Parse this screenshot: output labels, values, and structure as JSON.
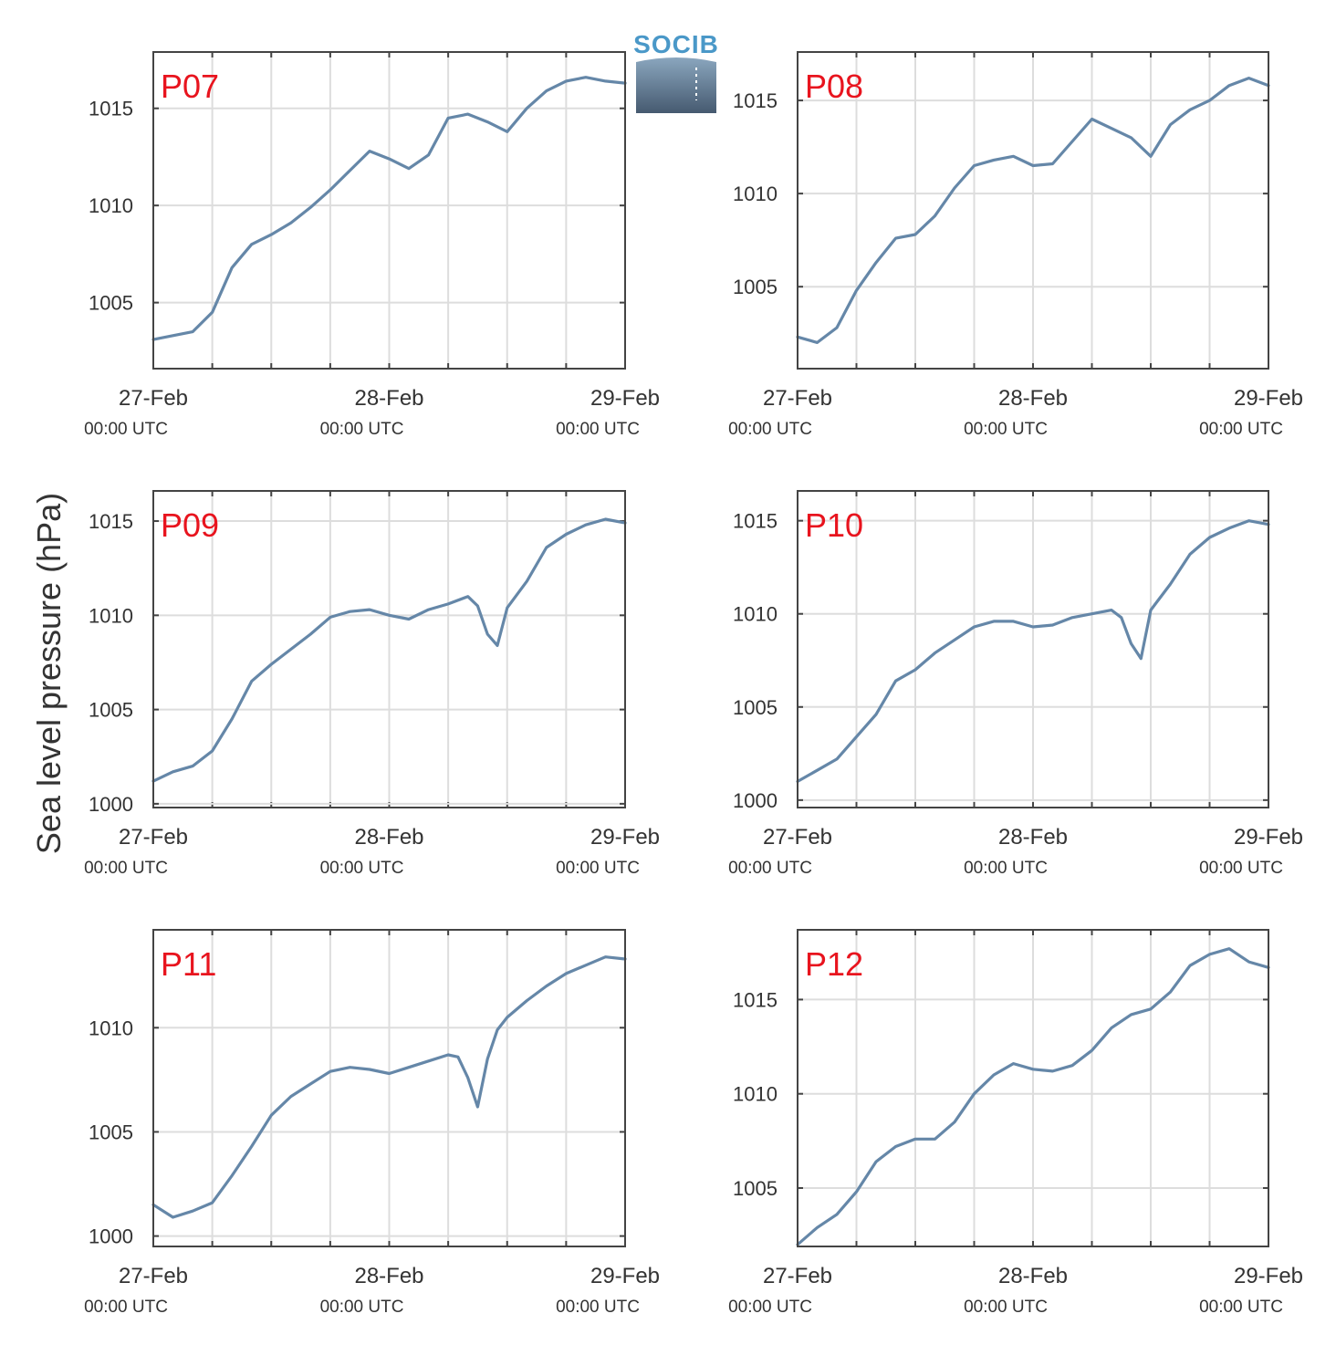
{
  "ylabel": "Sea level pressure (hPa)",
  "logo": {
    "text": "SOCIB",
    "color": "#4a98c8"
  },
  "colors": {
    "series": "#6587a8",
    "label": "#e8141e",
    "grid": "#dddddd",
    "axis": "#444444"
  },
  "x_ticks": [
    {
      "date": "27-Feb",
      "time": "00:00 UTC"
    },
    {
      "date": "28-Feb",
      "time": "00:00 UTC"
    },
    {
      "date": "29-Feb",
      "time": "00:00 UTC"
    }
  ],
  "chart_data": [
    {
      "type": "line",
      "label": "P07",
      "xlim": [
        "27-Feb 00:00",
        "29-Feb 00:00"
      ],
      "ylim": [
        1001.6,
        1017.9
      ],
      "yticks": [
        1005,
        1010,
        1015
      ],
      "x_hours": [
        0,
        2,
        4,
        6,
        8,
        10,
        12,
        14,
        16,
        18,
        20,
        22,
        24,
        26,
        28,
        30,
        32,
        34,
        36,
        38,
        40,
        42,
        44,
        46,
        48
      ],
      "values": [
        1003.1,
        1003.3,
        1003.5,
        1004.5,
        1006.8,
        1008.0,
        1008.5,
        1009.1,
        1009.9,
        1010.8,
        1011.8,
        1012.8,
        1012.4,
        1011.9,
        1012.6,
        1014.5,
        1014.7,
        1014.3,
        1013.8,
        1015.0,
        1015.9,
        1016.4,
        1016.6,
        1016.4,
        1016.3
      ],
      "grid": true
    },
    {
      "type": "line",
      "label": "P08",
      "xlim": [
        "27-Feb 00:00",
        "29-Feb 00:00"
      ],
      "ylim": [
        1000.6,
        1017.6
      ],
      "yticks": [
        1005,
        1010,
        1015
      ],
      "x_hours": [
        0,
        2,
        4,
        6,
        8,
        10,
        12,
        14,
        16,
        18,
        20,
        22,
        24,
        26,
        28,
        30,
        32,
        34,
        36,
        38,
        40,
        42,
        44,
        46,
        48
      ],
      "values": [
        1002.3,
        1002.0,
        1002.8,
        1004.8,
        1006.3,
        1007.6,
        1007.8,
        1008.8,
        1010.3,
        1011.5,
        1011.8,
        1012.0,
        1011.5,
        1011.6,
        1012.8,
        1014.0,
        1013.5,
        1013.0,
        1012.0,
        1013.7,
        1014.5,
        1015.0,
        1015.8,
        1016.2,
        1015.8
      ],
      "grid": true
    },
    {
      "type": "line",
      "label": "P09",
      "xlim": [
        "27-Feb 00:00",
        "29-Feb 00:00"
      ],
      "ylim": [
        999.8,
        1016.6
      ],
      "yticks": [
        1000,
        1005,
        1010,
        1015
      ],
      "x_hours": [
        0,
        2,
        4,
        6,
        8,
        10,
        12,
        14,
        16,
        18,
        20,
        22,
        24,
        26,
        28,
        30,
        32,
        33,
        34,
        35,
        36,
        38,
        40,
        42,
        44,
        46,
        48
      ],
      "values": [
        1001.2,
        1001.7,
        1002.0,
        1002.8,
        1004.5,
        1006.5,
        1007.4,
        1008.2,
        1009.0,
        1009.9,
        1010.2,
        1010.3,
        1010.0,
        1009.8,
        1010.3,
        1010.6,
        1011.0,
        1010.5,
        1009.0,
        1008.4,
        1010.4,
        1011.8,
        1013.6,
        1014.3,
        1014.8,
        1015.1,
        1014.9
      ],
      "grid": true
    },
    {
      "type": "line",
      "label": "P10",
      "xlim": [
        "27-Feb 00:00",
        "29-Feb 00:00"
      ],
      "ylim": [
        999.6,
        1016.6
      ],
      "yticks": [
        1000,
        1005,
        1010,
        1015
      ],
      "x_hours": [
        0,
        2,
        4,
        6,
        8,
        10,
        12,
        14,
        16,
        18,
        20,
        22,
        24,
        26,
        28,
        30,
        32,
        33,
        34,
        35,
        36,
        38,
        40,
        42,
        44,
        46,
        48
      ],
      "values": [
        1001.0,
        1001.6,
        1002.2,
        1003.4,
        1004.6,
        1006.4,
        1007.0,
        1007.9,
        1008.6,
        1009.3,
        1009.6,
        1009.6,
        1009.3,
        1009.4,
        1009.8,
        1010.0,
        1010.2,
        1009.8,
        1008.4,
        1007.6,
        1010.2,
        1011.6,
        1013.2,
        1014.1,
        1014.6,
        1015.0,
        1014.8
      ],
      "grid": true
    },
    {
      "type": "line",
      "label": "P11",
      "xlim": [
        "27-Feb 00:00",
        "29-Feb 00:00"
      ],
      "ylim": [
        999.5,
        1014.7
      ],
      "yticks": [
        1000,
        1005,
        1010
      ],
      "x_hours": [
        0,
        2,
        4,
        6,
        8,
        10,
        12,
        14,
        16,
        18,
        20,
        22,
        24,
        26,
        28,
        30,
        31,
        32,
        33,
        34,
        35,
        36,
        38,
        40,
        42,
        44,
        46,
        48
      ],
      "values": [
        1001.5,
        1000.9,
        1001.2,
        1001.6,
        1002.9,
        1004.3,
        1005.8,
        1006.7,
        1007.3,
        1007.9,
        1008.1,
        1008.0,
        1007.8,
        1008.1,
        1008.4,
        1008.7,
        1008.6,
        1007.6,
        1006.2,
        1008.5,
        1009.9,
        1010.5,
        1011.3,
        1012.0,
        1012.6,
        1013.0,
        1013.4,
        1013.3
      ],
      "grid": true
    },
    {
      "type": "line",
      "label": "P12",
      "xlim": [
        "27-Feb 00:00",
        "29-Feb 00:00"
      ],
      "ylim": [
        1001.9,
        1018.7
      ],
      "yticks": [
        1005,
        1010,
        1015
      ],
      "x_hours": [
        0,
        2,
        4,
        6,
        8,
        10,
        12,
        14,
        16,
        18,
        20,
        22,
        24,
        26,
        28,
        30,
        32,
        34,
        36,
        38,
        40,
        42,
        44,
        46,
        48
      ],
      "values": [
        1002.0,
        1002.9,
        1003.6,
        1004.8,
        1006.4,
        1007.2,
        1007.6,
        1007.6,
        1008.5,
        1010.0,
        1011.0,
        1011.6,
        1011.3,
        1011.2,
        1011.5,
        1012.3,
        1013.5,
        1014.2,
        1014.5,
        1015.4,
        1016.8,
        1017.4,
        1017.7,
        1017.0,
        1016.7
      ],
      "grid": true
    }
  ]
}
